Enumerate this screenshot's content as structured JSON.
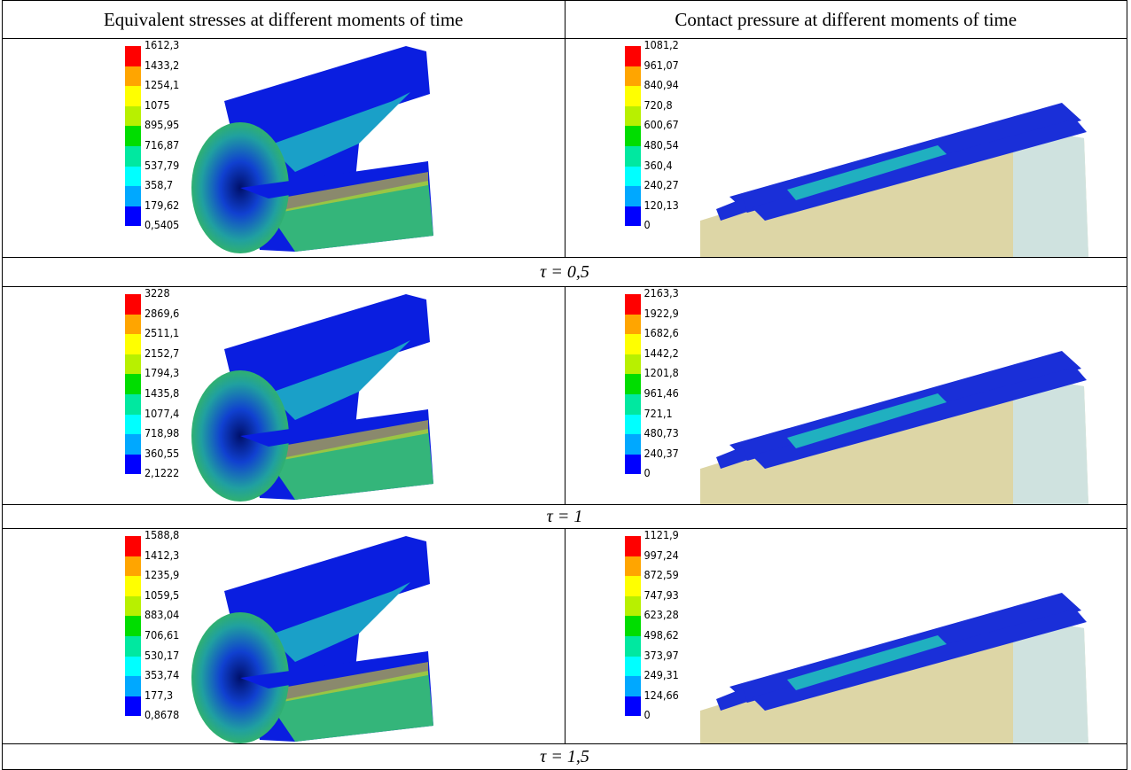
{
  "table": {
    "header": [
      "Equivalent stresses at different moments of time",
      "Contact pressure at different moments of time"
    ],
    "rows": [
      {
        "stress_legend": [
          "1612,3",
          "1433,2",
          "1254,1",
          "1075",
          "895,95",
          "716,87",
          "537,79",
          "358,7",
          "179,62",
          "0,5405"
        ],
        "pressure_legend": [
          "1081,2",
          "961,07",
          "840,94",
          "720,8",
          "600,67",
          "480,54",
          "360,4",
          "240,27",
          "120,13",
          "0"
        ],
        "caption": "τ = 0,5"
      },
      {
        "stress_legend": [
          "3228",
          "2869,6",
          "2511,1",
          "2152,7",
          "1794,3",
          "1435,8",
          "1077,4",
          "718,98",
          "360,55",
          "2,1222"
        ],
        "pressure_legend": [
          "2163,3",
          "1922,9",
          "1682,6",
          "1442,2",
          "1201,8",
          "961,46",
          "721,1",
          "480,73",
          "240,37",
          "0"
        ],
        "caption": "τ = 1"
      },
      {
        "stress_legend": [
          "1588,8",
          "1412,3",
          "1235,9",
          "1059,5",
          "883,04",
          "706,61",
          "530,17",
          "353,74",
          "177,3",
          "0,8678"
        ],
        "pressure_legend": [
          "1121,9",
          "997,24",
          "872,59",
          "747,93",
          "623,28",
          "498,62",
          "373,97",
          "249,31",
          "124,66",
          "0"
        ],
        "caption": "τ = 1,5"
      }
    ]
  }
}
